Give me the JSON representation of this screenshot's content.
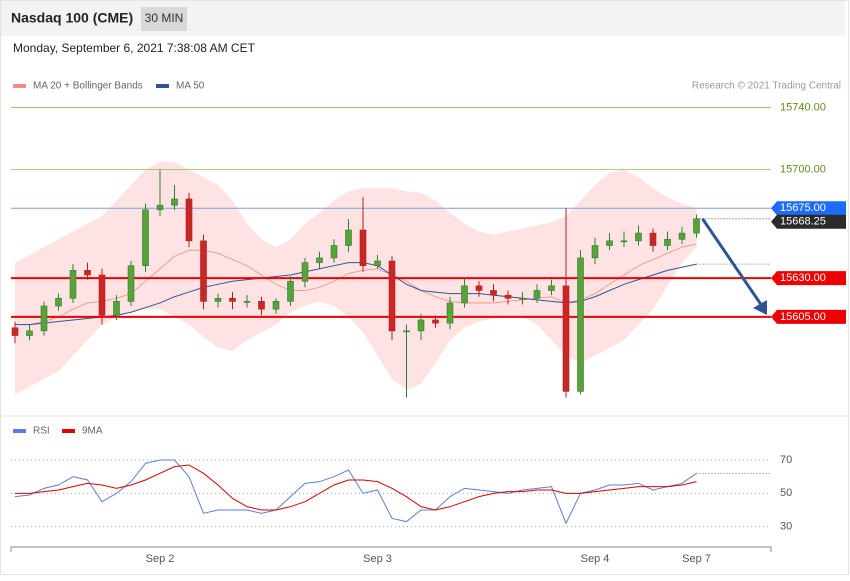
{
  "chart_data": [
    {
      "type": "candlestick",
      "title": "Nasdaq 100 (CME)",
      "interval": "30 MIN",
      "subtitle": "Monday, September 6, 2021 7:38:08 AM CET",
      "credit": "Research © 2021 Trading Central",
      "categories": [
        null,
        null,
        null,
        null,
        null,
        null,
        null,
        null,
        null,
        null,
        "Sep 2",
        null,
        null,
        null,
        null,
        null,
        null,
        null,
        null,
        null,
        null,
        null,
        null,
        null,
        null,
        "Sep 3",
        null,
        null,
        null,
        null,
        null,
        null,
        null,
        null,
        null,
        null,
        null,
        null,
        null,
        null,
        "Sep 4",
        null,
        null,
        null,
        null,
        null,
        null,
        "Sep 7"
      ],
      "open": [
        15598,
        15593,
        15596,
        15612,
        15617,
        15635,
        15632,
        15606,
        15615,
        15638,
        15674,
        15677,
        15681,
        15654,
        15615,
        15617,
        15615,
        15615,
        15610,
        15615,
        15628,
        15640,
        15643,
        15651,
        15661,
        15638,
        15641,
        15596,
        15596,
        15603,
        15601,
        15614,
        15625,
        15622,
        15619,
        15617,
        15617,
        15622,
        15625,
        15557,
        15643,
        15651,
        15654,
        15654,
        15659,
        15651,
        15655,
        15659
      ],
      "high": [
        15602,
        15600,
        15615,
        15620,
        15639,
        15640,
        15636,
        15619,
        15641,
        15678,
        15700,
        15690,
        15685,
        15658,
        15620,
        15621,
        15619,
        15618,
        15617,
        15631,
        15643,
        15647,
        15655,
        15668,
        15682,
        15645,
        15644,
        15600,
        15607,
        15606,
        15618,
        15630,
        15628,
        15626,
        15622,
        15621,
        15626,
        15629,
        15675,
        15648,
        15656,
        15659,
        15660,
        15664,
        15662,
        15660,
        15663,
        15671
      ],
      "low": [
        15588,
        15590,
        15593,
        15609,
        15614,
        15629,
        15600,
        15603,
        15612,
        15634,
        15670,
        15674,
        15650,
        15610,
        15611,
        15610,
        15611,
        15606,
        15607,
        15612,
        15624,
        15636,
        15640,
        15647,
        15634,
        15636,
        15590,
        15553,
        15590,
        15598,
        15597,
        15611,
        15618,
        15615,
        15613,
        15613,
        15614,
        15619,
        15553,
        15555,
        15639,
        15648,
        15650,
        15651,
        15647,
        15648,
        15652,
        15656
      ],
      "close": [
        15593,
        15596,
        15612,
        15617,
        15635,
        15632,
        15606,
        15615,
        15638,
        15674,
        15677,
        15681,
        15654,
        15615,
        15617,
        15615,
        15615,
        15610,
        15615,
        15628,
        15640,
        15643,
        15651,
        15661,
        15638,
        15641,
        15596,
        15596,
        15603,
        15601,
        15614,
        15625,
        15622,
        15619,
        15617,
        15617,
        15622,
        15625,
        15557,
        15643,
        15651,
        15654,
        15654,
        15659,
        15651,
        15655,
        15659,
        15668.25
      ],
      "up_color": "#2e7d32",
      "down_color": "#b71c1c",
      "series": [
        {
          "name": "MA 20 + Bollinger Bands",
          "color": "#f28b82",
          "band_color": "#ffdede",
          "values": [
            15600,
            15600,
            15602,
            15605,
            15610,
            15614,
            15615,
            15617,
            15620,
            15628,
            15636,
            15644,
            15648,
            15648,
            15646,
            15642,
            15638,
            15632,
            15626,
            15622,
            15622,
            15624,
            15628,
            15633,
            15635,
            15636,
            15632,
            15628,
            15622,
            15618,
            15615,
            15614,
            15614,
            15614,
            15615,
            15616,
            15617,
            15618,
            15614,
            15616,
            15620,
            15626,
            15632,
            15638,
            15642,
            15646,
            15650,
            15652
          ],
          "upper": [
            15640,
            15645,
            15650,
            15655,
            15660,
            15665,
            15670,
            15680,
            15690,
            15700,
            15705,
            15705,
            15700,
            15695,
            15690,
            15680,
            15665,
            15655,
            15650,
            15655,
            15665,
            15672,
            15680,
            15686,
            15688,
            15688,
            15688,
            15686,
            15685,
            15680,
            15672,
            15665,
            15660,
            15658,
            15660,
            15662,
            15664,
            15666,
            15670,
            15680,
            15690,
            15698,
            15700,
            15695,
            15688,
            15682,
            15678,
            15675
          ],
          "lower": [
            15555,
            15560,
            15565,
            15570,
            15580,
            15590,
            15600,
            15605,
            15608,
            15610,
            15610,
            15605,
            15600,
            15592,
            15585,
            15583,
            15590,
            15595,
            15600,
            15608,
            15612,
            15615,
            15612,
            15605,
            15595,
            15580,
            15565,
            15558,
            15562,
            15575,
            15590,
            15598,
            15602,
            15604,
            15605,
            15605,
            15600,
            15590,
            15580,
            15575,
            15580,
            15585,
            15590,
            15600,
            15610,
            15625,
            15640,
            15650
          ]
        },
        {
          "name": "MA 50",
          "color": "#2f5597",
          "values": [
            15600,
            15600,
            15601,
            15602,
            15603,
            15604,
            15605,
            15606,
            15608,
            15611,
            15614,
            15618,
            15621,
            15624,
            15626,
            15628,
            15629,
            15630,
            15631,
            15632,
            15634,
            15636,
            15638,
            15640,
            15640,
            15638,
            15632,
            15626,
            15622,
            15621,
            15620,
            15620,
            15620,
            15619,
            15618,
            15617,
            15616,
            15615,
            15614,
            15615,
            15618,
            15622,
            15626,
            15629,
            15632,
            15635,
            15637,
            15639
          ]
        }
      ],
      "ylim": [
        15545,
        15748
      ],
      "yticks": [
        {
          "value": 15700,
          "label": "15700.00"
        },
        {
          "value": 15740,
          "label": "15740.00"
        }
      ],
      "grid_color": "#8bc34a",
      "levels": [
        {
          "value": 15675,
          "label": "15675.00",
          "color": "#1e6cff"
        },
        {
          "value": 15668.25,
          "label": "15668.25",
          "color": "#2b2b2b"
        },
        {
          "value": 15630,
          "label": "15630.00",
          "color": "#ee0000"
        },
        {
          "value": 15605,
          "label": "15605.00",
          "color": "#ee0000"
        }
      ]
    },
    {
      "type": "line",
      "series": [
        {
          "name": "RSI",
          "color": "#5b7fd6",
          "values": [
            48,
            49,
            53,
            55,
            60,
            58,
            45,
            50,
            57,
            68,
            70,
            70,
            60,
            38,
            40,
            40,
            40,
            38,
            40,
            48,
            56,
            57,
            60,
            64,
            50,
            52,
            35,
            33,
            40,
            40,
            48,
            53,
            52,
            51,
            50,
            52,
            53,
            54,
            32,
            50,
            52,
            55,
            55,
            56,
            52,
            54,
            56,
            62
          ]
        },
        {
          "name": "9MA",
          "color": "#e00000",
          "values": [
            50,
            50,
            51,
            52,
            54,
            56,
            55,
            53,
            55,
            58,
            62,
            66,
            67,
            62,
            55,
            47,
            42,
            40,
            40,
            42,
            45,
            50,
            55,
            58,
            58,
            57,
            53,
            48,
            42,
            40,
            42,
            45,
            48,
            50,
            51,
            51,
            52,
            52,
            50,
            50,
            51,
            52,
            53,
            54,
            54,
            54,
            55,
            57
          ]
        }
      ],
      "ylim": [
        25,
        79
      ],
      "yticks": [
        30,
        50,
        70
      ]
    }
  ]
}
